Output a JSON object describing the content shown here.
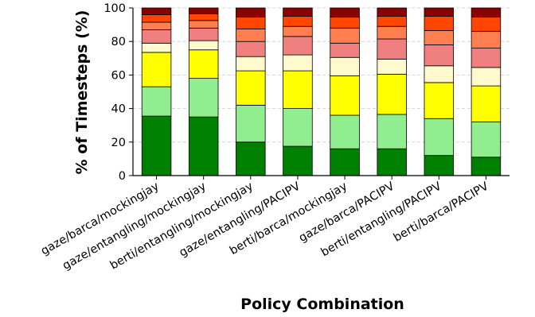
{
  "chart_data": {
    "type": "bar",
    "stacked": true,
    "title": "",
    "xlabel": "Policy Combination",
    "ylabel": "% of Timesteps (%)",
    "ylim": [
      0,
      100
    ],
    "yticks": [
      0,
      20,
      40,
      60,
      80,
      100
    ],
    "grid": "horizontal-dashed",
    "legend": "none",
    "categories": [
      "gaze/barca/mockingjay",
      "gaze/entangling/mockingjay",
      "berti/entangling/mockingjay",
      "gaze/entangling/PACIPV",
      "berti/barca/mockingjay",
      "gaze/barca/PACIPV",
      "berti/entangling/PACIPV",
      "berti/barca/PACIPV"
    ],
    "series": [
      {
        "color": "#008000",
        "values": [
          35.5,
          35,
          20,
          17.5,
          16,
          16,
          12,
          11
        ]
      },
      {
        "color": "#90ee90",
        "values": [
          17.5,
          23,
          22,
          22.5,
          20,
          20.5,
          22,
          21
        ]
      },
      {
        "color": "#ffff00",
        "values": [
          20.5,
          17,
          20.5,
          22.5,
          23.5,
          24,
          21.5,
          21.5
        ]
      },
      {
        "color": "#fffacd",
        "values": [
          5.5,
          5.5,
          8.5,
          9.5,
          11,
          9,
          10,
          11
        ]
      },
      {
        "color": "#f08080",
        "values": [
          8,
          7.5,
          9,
          11,
          8.5,
          12,
          12.5,
          11.5
        ]
      },
      {
        "color": "#ff7f50",
        "values": [
          4.5,
          4.5,
          7.5,
          6,
          9,
          7.5,
          8.5,
          10
        ]
      },
      {
        "color": "#ff4500",
        "values": [
          4.5,
          4,
          7,
          6,
          6.5,
          6,
          8.5,
          8.5
        ]
      },
      {
        "color": "#8b0000",
        "values": [
          4,
          3.5,
          5.5,
          5,
          5.5,
          5,
          5,
          5.5
        ]
      }
    ]
  }
}
